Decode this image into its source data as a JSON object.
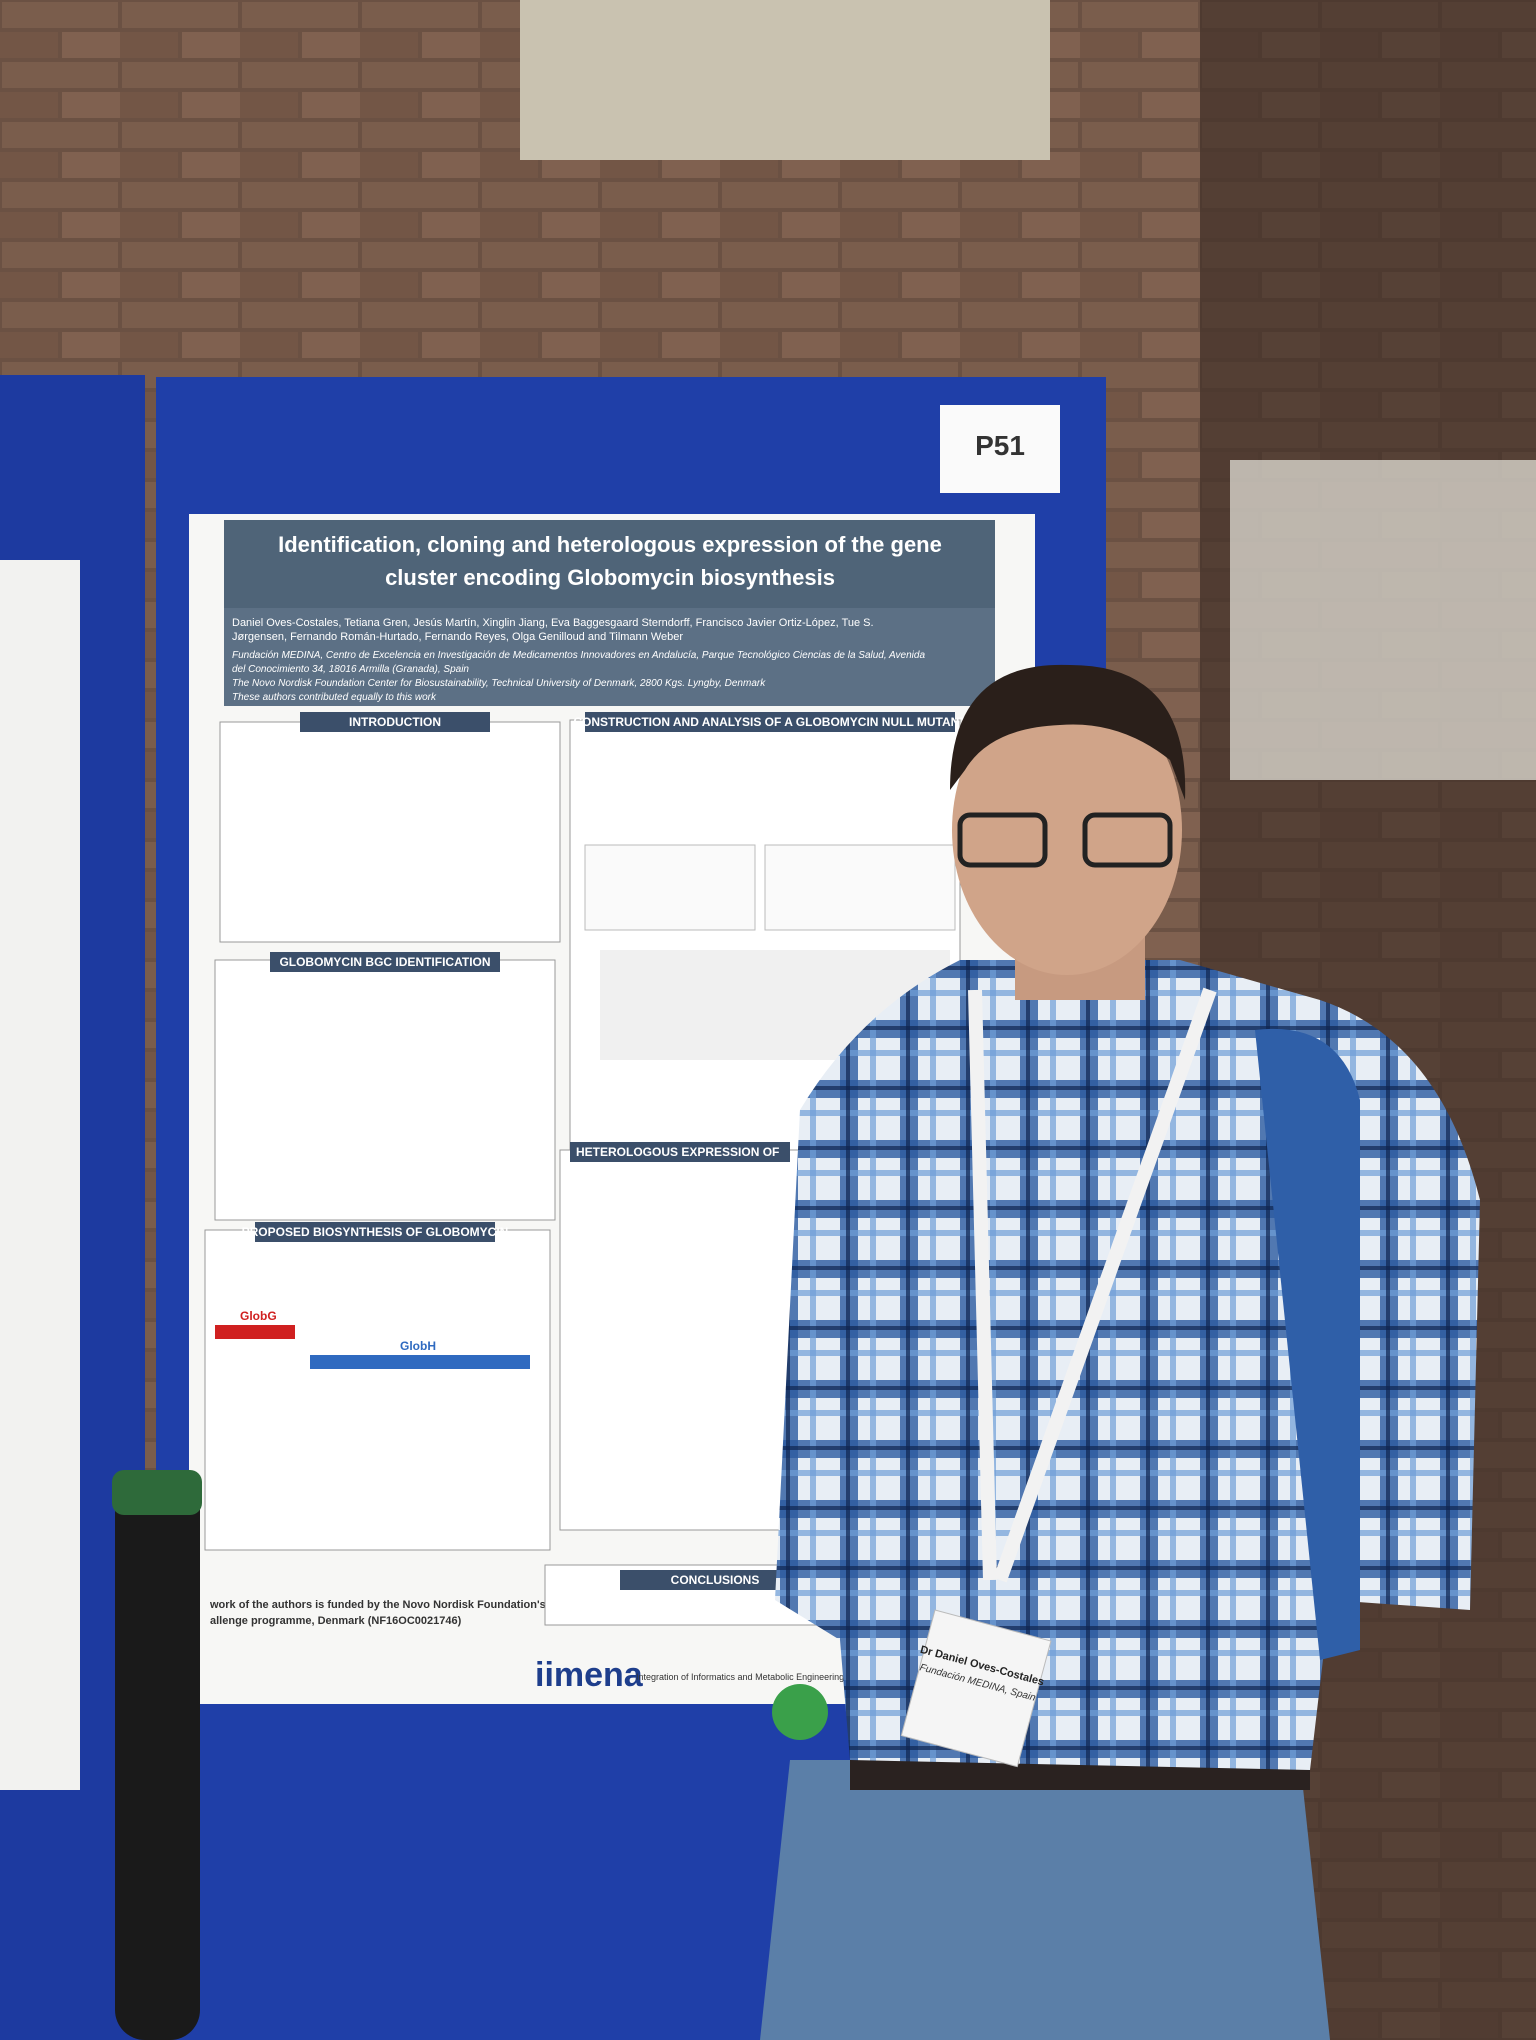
{
  "poster": {
    "number": "P51",
    "title_line1": "Identification, cloning and heterologous expression of the gene",
    "title_line2": "cluster encoding Globomycin biosynthesis",
    "authors_line1": "Daniel Oves-Costales, Tetiana Gren, Jesús Martín, Xinglin Jiang, Eva Baggesgaard Sterndorff, Francisco Javier Ortiz-López, Tue S.",
    "authors_line2": "Jørgensen, Fernando Román-Hurtado, Fernando Reyes, Olga Genilloud and Tilmann Weber",
    "affiliation1": "Fundación MEDINA, Centro de Excelencia en Investigación de Medicamentos Innovadores en Andalucía, Parque Tecnológico Ciencias de la Salud, Avenida",
    "affiliation1b": "del Conocimiento 34, 18016 Armilla (Granada), Spain",
    "affiliation2": "The Novo Nordisk Foundation Center for Biosustainability, Technical University of Denmark, 2800 Kgs. Lyngby, Denmark",
    "affiliation3": "These authors contributed equally to this work",
    "sections": [
      "INTRODUCTION",
      "GLOBOMYCIN BGC IDENTIFICATION",
      "PROPOSED BIOSYNTHESIS OF GLOBOMYCIN",
      "CONSTRUCTION AND ANALYSIS OF A GLOBOMYCIN NULL MUTANT",
      "HETEROLOGOUS EXPRESSION OF",
      "CONCLUSIONS"
    ],
    "gene_labels": [
      "GlobG",
      "GlobH"
    ],
    "funding": "work of the authors is funded by the Novo Nordisk Foundation's",
    "funding2": "allenge programme, Denmark (NF16OC0021746)",
    "logo": "iimena",
    "logo_text": "Integration of Informatics and Metabolic Engineering for the discovery of Novel Antibiotics"
  },
  "badge": {
    "name": "Dr Daniel Oves-Costales",
    "org": "Fundación MEDINA, Spain"
  }
}
